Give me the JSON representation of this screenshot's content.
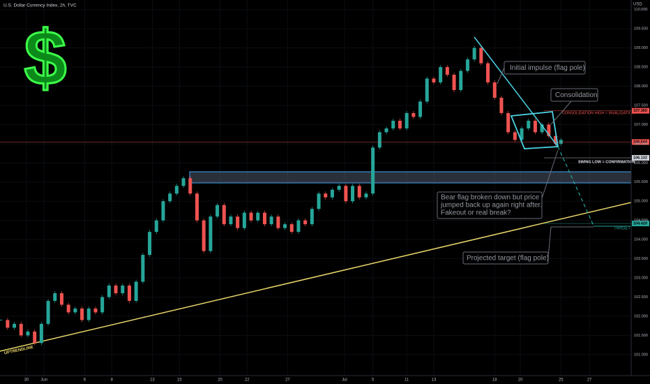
{
  "chart_data": {
    "type": "candlestick",
    "title": "U.S. Dollar Currency Index, 2h, TVC",
    "currency": "USD",
    "icon": "$",
    "up_color": "#26a69a",
    "down_color": "#ef5350",
    "x": [
      -1.9,
      -1.4,
      -0.9,
      -0.4,
      0.1,
      0.6,
      1.1,
      1.6,
      2.1,
      2.6,
      3.1,
      3.6,
      4.1,
      4.6,
      5.1,
      5.6,
      6.1,
      6.6,
      7.1,
      7.6,
      8.1,
      8.6,
      9.1,
      9.6,
      10.1,
      10.6,
      11.1,
      11.6,
      12.1,
      12.6,
      13.1,
      13.6,
      14.1,
      14.6,
      15.1,
      15.6,
      16.1,
      16.6,
      17.1,
      17.6,
      18.1,
      18.6,
      19.1,
      19.6,
      20.1,
      20.6,
      21.1,
      21.6,
      22.1,
      22.6,
      23.1,
      23.6,
      24.1,
      24.6,
      25.1,
      25.6,
      26.1,
      26.6,
      27.1,
      27.6,
      28.1,
      28.6,
      29.1,
      29.6,
      30.1,
      30.6,
      31.1,
      31.6,
      32.1,
      32.6,
      33.1,
      33.6,
      34.1,
      34.6,
      35.1,
      35.6,
      36.1,
      36.6,
      37.1,
      37.6,
      38.1,
      38.6,
      39.1,
      39.5
    ],
    "values": [
      101.9,
      101.7,
      101.8,
      101.5,
      101.6,
      101.3,
      101.8,
      102.4,
      102.6,
      102.3,
      102.1,
      102.2,
      101.9,
      102.2,
      102.1,
      102.5,
      102.8,
      102.6,
      102.8,
      102.4,
      102.9,
      103.6,
      104.2,
      104.5,
      105.0,
      105.2,
      105.4,
      105.6,
      105.2,
      104.5,
      103.7,
      104.6,
      104.9,
      104.4,
      104.6,
      104.3,
      104.7,
      104.5,
      104.7,
      104.4,
      104.6,
      104.3,
      104.4,
      104.2,
      104.5,
      104.4,
      104.8,
      105.2,
      105.1,
      105.3,
      105.4,
      105.0,
      105.4,
      105.1,
      105.2,
      106.4,
      106.8,
      106.9,
      107.1,
      106.9,
      107.3,
      107.2,
      107.6,
      108.2,
      108.1,
      108.5,
      108.3,
      107.9,
      108.4,
      108.7,
      109.0,
      108.6,
      108.1,
      107.7,
      107.3,
      106.8,
      106.6,
      106.9,
      107.1,
      106.8,
      107.0,
      106.7,
      106.5,
      106.6
    ],
    "xlim": [
      -1.96,
      44.69
    ],
    "xticks": [
      {
        "value": 0,
        "label": "30"
      },
      {
        "value": 1.3,
        "label": "Jun"
      },
      {
        "value": 4.3,
        "label": "6"
      },
      {
        "value": 6.3,
        "label": "8"
      },
      {
        "value": 9.3,
        "label": "13"
      },
      {
        "value": 11.3,
        "label": "15"
      },
      {
        "value": 14.3,
        "label": "20"
      },
      {
        "value": 16.3,
        "label": "22"
      },
      {
        "value": 19.3,
        "label": "27"
      },
      {
        "value": 23.5,
        "label": "Jul"
      },
      {
        "value": 25.6,
        "label": "5"
      },
      {
        "value": 28.1,
        "label": "11"
      },
      {
        "value": 30.1,
        "label": "13"
      },
      {
        "value": 34.6,
        "label": "18"
      },
      {
        "value": 36.5,
        "label": "20"
      },
      {
        "value": 39.5,
        "label": "25"
      },
      {
        "value": 41.6,
        "label": "27"
      }
    ],
    "ylim": [
      100.45,
      110.25
    ],
    "yticks": [
      {
        "value": 110,
        "label": "110.000"
      },
      {
        "value": 109.5,
        "label": "109.500"
      },
      {
        "value": 109,
        "label": "109.000"
      },
      {
        "value": 108.5,
        "label": "108.500"
      },
      {
        "value": 108,
        "label": "108.000"
      },
      {
        "value": 107.5,
        "label": "107.500"
      },
      {
        "value": 107,
        "label": "107.000"
      },
      {
        "value": 106.5,
        "label": "106.500"
      },
      {
        "value": 106,
        "label": "106.000"
      },
      {
        "value": 105.5,
        "label": "105.500"
      },
      {
        "value": 105,
        "label": "105.000"
      },
      {
        "value": 104.5,
        "label": "104.500"
      },
      {
        "value": 104,
        "label": "104.000"
      },
      {
        "value": 103.5,
        "label": "103.500"
      },
      {
        "value": 103,
        "label": "103.000"
      },
      {
        "value": 102.5,
        "label": "102.500"
      },
      {
        "value": 102,
        "label": "102.000"
      },
      {
        "value": 101.5,
        "label": "101.500"
      },
      {
        "value": 101,
        "label": "101.000"
      }
    ],
    "price_labels": [
      {
        "value": 107.36,
        "label": "107.360",
        "color": "#ef5350"
      },
      {
        "value": 106.544,
        "label": "106.544",
        "color": "#ef5350"
      },
      {
        "value": 106.132,
        "label": "106.132",
        "color": "#d1d4dc"
      },
      {
        "value": 104.42,
        "label": "104.420",
        "color": "#26a69a"
      }
    ],
    "annotations": {
      "impulse": "Initial impulse (flag pole)",
      "consolidation": "Consolidation",
      "invalidation": "CONSOLIDATION HIGH = INVALIDATION",
      "confirmation": "SWING LOW = CONFIRMATION",
      "bear_flag": [
        "Bear flag broken down but price",
        "jumped back up again right after.",
        "Fakeout or real break?"
      ],
      "projected": "Projected target (flag pole)",
      "target": "TARGET",
      "uptrend": "UPTRENDLINE"
    }
  }
}
